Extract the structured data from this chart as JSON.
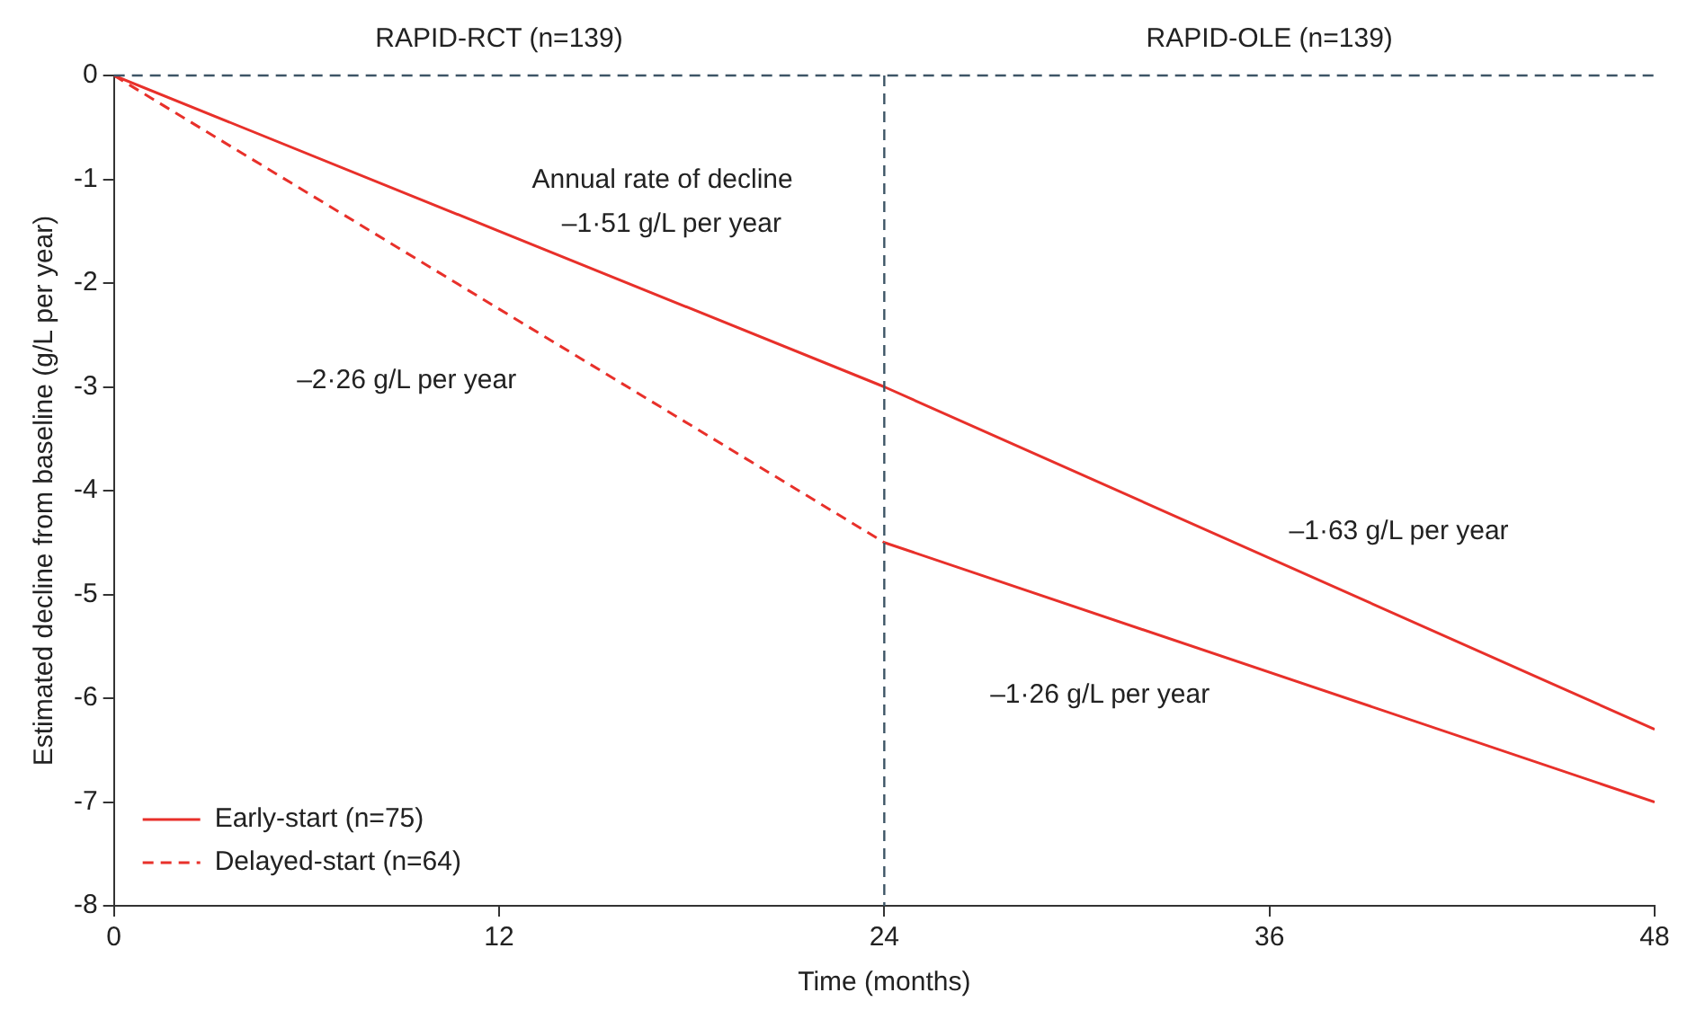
{
  "chart_data": {
    "type": "line",
    "xlabel": "Time (months)",
    "ylabel": "Estimated decline from baseline (g/L per year)",
    "xlim": [
      0,
      48
    ],
    "xticks": [
      0,
      12,
      24,
      36,
      48
    ],
    "ylim": [
      -8,
      0
    ],
    "yticks": [
      -8,
      -7,
      -6,
      -5,
      -4,
      -3,
      -2,
      -1,
      0
    ],
    "grid": false,
    "legend": "bottom left",
    "series": [
      {
        "name": "Early-start (n=75)",
        "color": "#e8302a",
        "x": [
          0,
          24,
          48
        ],
        "values": [
          0,
          -3.0,
          -6.3
        ],
        "line_style": "solid"
      },
      {
        "name": "Delayed-start (n=64)",
        "color": "#e8302a",
        "x": [
          0,
          24
        ],
        "values": [
          0,
          -4.5
        ],
        "line_style": "dashed"
      },
      {
        "color": "#e8302a",
        "x": [
          24,
          48
        ],
        "values": [
          -4.5,
          -7.0
        ],
        "line_style": "solid"
      }
    ],
    "ref_lines": [
      {
        "axis": "y",
        "value": 0,
        "color": "#3d5566",
        "line_style": "dashed"
      },
      {
        "axis": "x",
        "value": 24,
        "color": "#3d5566",
        "line_style": "dashed"
      }
    ],
    "subtitle": [
      "RAPID-RCT (n=139)",
      "RAPID-OLE (n=139)"
    ],
    "annotations": [
      "Annual rate of decline",
      "–1·51 g/L per year",
      "–2·26 g/L per year",
      "–1·63 g/L per year",
      "–1·26 g/L per year"
    ]
  }
}
